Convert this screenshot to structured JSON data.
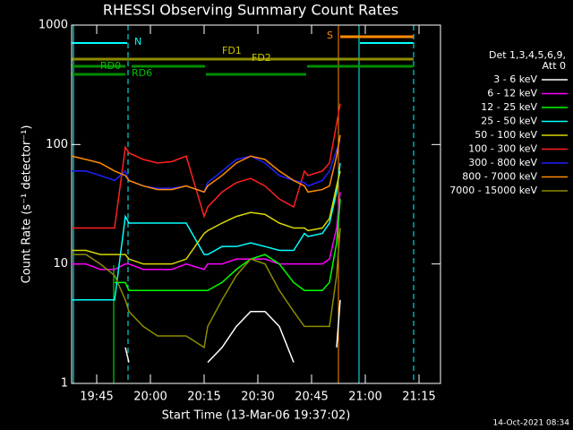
{
  "chart_data": {
    "type": "line",
    "title": "RHESSI Observing Summary Count Rates",
    "xlabel": "Start Time (13-Mar-06 19:37:02)",
    "ylabel": "Count Rate (s⁻¹ detector⁻¹)",
    "footer": "14-Oct-2021 08:34",
    "legend_title": [
      "Det 1,3,4,5,6,9,",
      "Att 0"
    ],
    "annotations": [
      "N",
      "S",
      "FD1",
      "FD2",
      "RD0",
      "RD6"
    ],
    "log_y": true,
    "xlim": [
      "19:38",
      "21:21"
    ],
    "xticks": [
      "19:45",
      "20:00",
      "20:15",
      "20:30",
      "20:45",
      "21:00",
      "21:15"
    ],
    "ylim": [
      1,
      1000
    ],
    "yticks": [
      1,
      10,
      100,
      1000
    ],
    "x": [
      "19:38",
      "19:42",
      "19:46",
      "19:50",
      "19:53",
      "19:54",
      "19:58",
      "20:02",
      "20:06",
      "20:10",
      "20:15",
      "20:16",
      "20:20",
      "20:24",
      "20:28",
      "20:32",
      "20:36",
      "20:40",
      "20:43",
      "20:44",
      "20:48",
      "20:50",
      "20:52",
      "20:53"
    ],
    "series": [
      {
        "name": "3 - 6 keV",
        "color": "#ffffff",
        "values": [
          null,
          null,
          null,
          null,
          2,
          1.5,
          null,
          null,
          null,
          null,
          null,
          1.5,
          2,
          3,
          4,
          4,
          3,
          1.5,
          null,
          null,
          null,
          null,
          2,
          5
        ]
      },
      {
        "name": "6 - 12 keV",
        "color": "#ff00ff",
        "values": [
          10,
          10,
          9,
          9,
          10,
          10,
          9,
          9,
          9,
          10,
          9,
          10,
          10,
          11,
          11,
          11,
          10,
          10,
          10,
          10,
          10,
          11,
          20,
          40
        ]
      },
      {
        "name": "12 - 25 keV",
        "color": "#00ff00",
        "values": [
          null,
          null,
          null,
          7,
          7,
          6,
          6,
          6,
          6,
          6,
          6,
          6,
          7,
          9,
          11,
          12,
          10,
          7,
          6,
          6,
          6,
          7,
          15,
          35
        ]
      },
      {
        "name": "25 - 50 keV",
        "color": "#00ffff",
        "values": [
          5,
          5,
          5,
          5,
          25,
          22,
          22,
          22,
          22,
          22,
          12,
          12,
          14,
          14,
          15,
          14,
          13,
          13,
          18,
          17,
          18,
          22,
          40,
          70
        ]
      },
      {
        "name": "50 - 100 keV",
        "color": "#d8d800",
        "values": [
          13,
          13,
          12,
          12,
          12,
          11,
          10,
          10,
          10,
          11,
          18,
          19,
          22,
          25,
          27,
          26,
          22,
          20,
          20,
          19,
          20,
          24,
          45,
          60
        ]
      },
      {
        "name": "100 - 300 keV",
        "color": "#ff2020",
        "values": [
          20,
          20,
          20,
          20,
          95,
          85,
          75,
          70,
          72,
          80,
          25,
          30,
          40,
          48,
          52,
          45,
          35,
          30,
          60,
          55,
          60,
          70,
          150,
          220
        ]
      },
      {
        "name": "300 - 800 keV",
        "color": "#2020ff",
        "values": [
          60,
          60,
          55,
          50,
          60,
          50,
          45,
          43,
          43,
          45,
          40,
          48,
          60,
          75,
          80,
          70,
          55,
          50,
          48,
          45,
          50,
          60,
          90,
          110
        ]
      },
      {
        "name": "800 - 7000 keV",
        "color": "#ff8c00",
        "values": [
          80,
          75,
          70,
          60,
          55,
          50,
          45,
          42,
          42,
          45,
          40,
          45,
          55,
          70,
          80,
          75,
          60,
          50,
          45,
          40,
          42,
          45,
          80,
          120
        ]
      },
      {
        "name": "7000 - 15000 keV",
        "color": "#8c8c00",
        "values": [
          12,
          12,
          10,
          8,
          5,
          4,
          3,
          2.5,
          2.5,
          2.5,
          2,
          3,
          5,
          8,
          11,
          10,
          6,
          4,
          3,
          3,
          3,
          3,
          8,
          20
        ]
      }
    ]
  }
}
